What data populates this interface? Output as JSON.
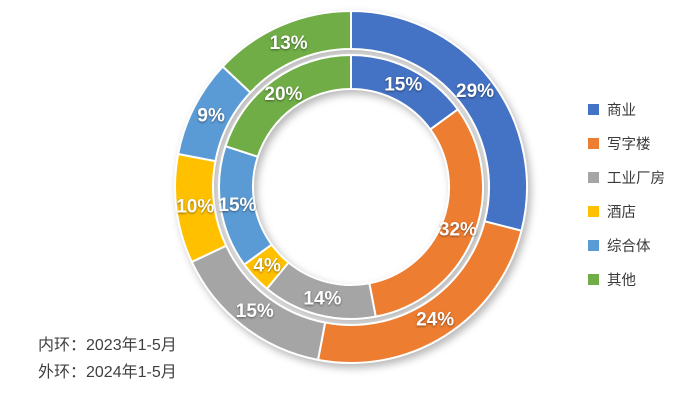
{
  "chart_data": {
    "type": "pie",
    "subtype": "double-ring-donut",
    "categories": [
      "商业",
      "写字楼",
      "工业厂房",
      "酒店",
      "综合体",
      "其他"
    ],
    "colors": [
      "#4472C4",
      "#ED7D31",
      "#A5A5A5",
      "#FFC000",
      "#5B9BD5",
      "#70AD47"
    ],
    "series": [
      {
        "name": "内环：2023年1-5月",
        "ring": "inner",
        "values": [
          15,
          32,
          14,
          4,
          15,
          20
        ]
      },
      {
        "name": "外环：2024年1-5月",
        "ring": "outer",
        "values": [
          29,
          24,
          15,
          10,
          9,
          13
        ]
      }
    ],
    "label_format": "percent",
    "labels_color": "#ffffff",
    "legend_position": "right",
    "start_angle_deg": 0,
    "direction": "clockwise"
  },
  "legend": {
    "items": [
      {
        "label": "商业",
        "color": "#4472C4"
      },
      {
        "label": "写字楼",
        "color": "#ED7D31"
      },
      {
        "label": "工业厂房",
        "color": "#A5A5A5"
      },
      {
        "label": "酒店",
        "color": "#FFC000"
      },
      {
        "label": "综合体",
        "color": "#5B9BD5"
      },
      {
        "label": "其他",
        "color": "#70AD47"
      }
    ]
  },
  "notes": {
    "inner": "内环：2023年1-5月",
    "outer": "外环：2024年1-5月"
  }
}
